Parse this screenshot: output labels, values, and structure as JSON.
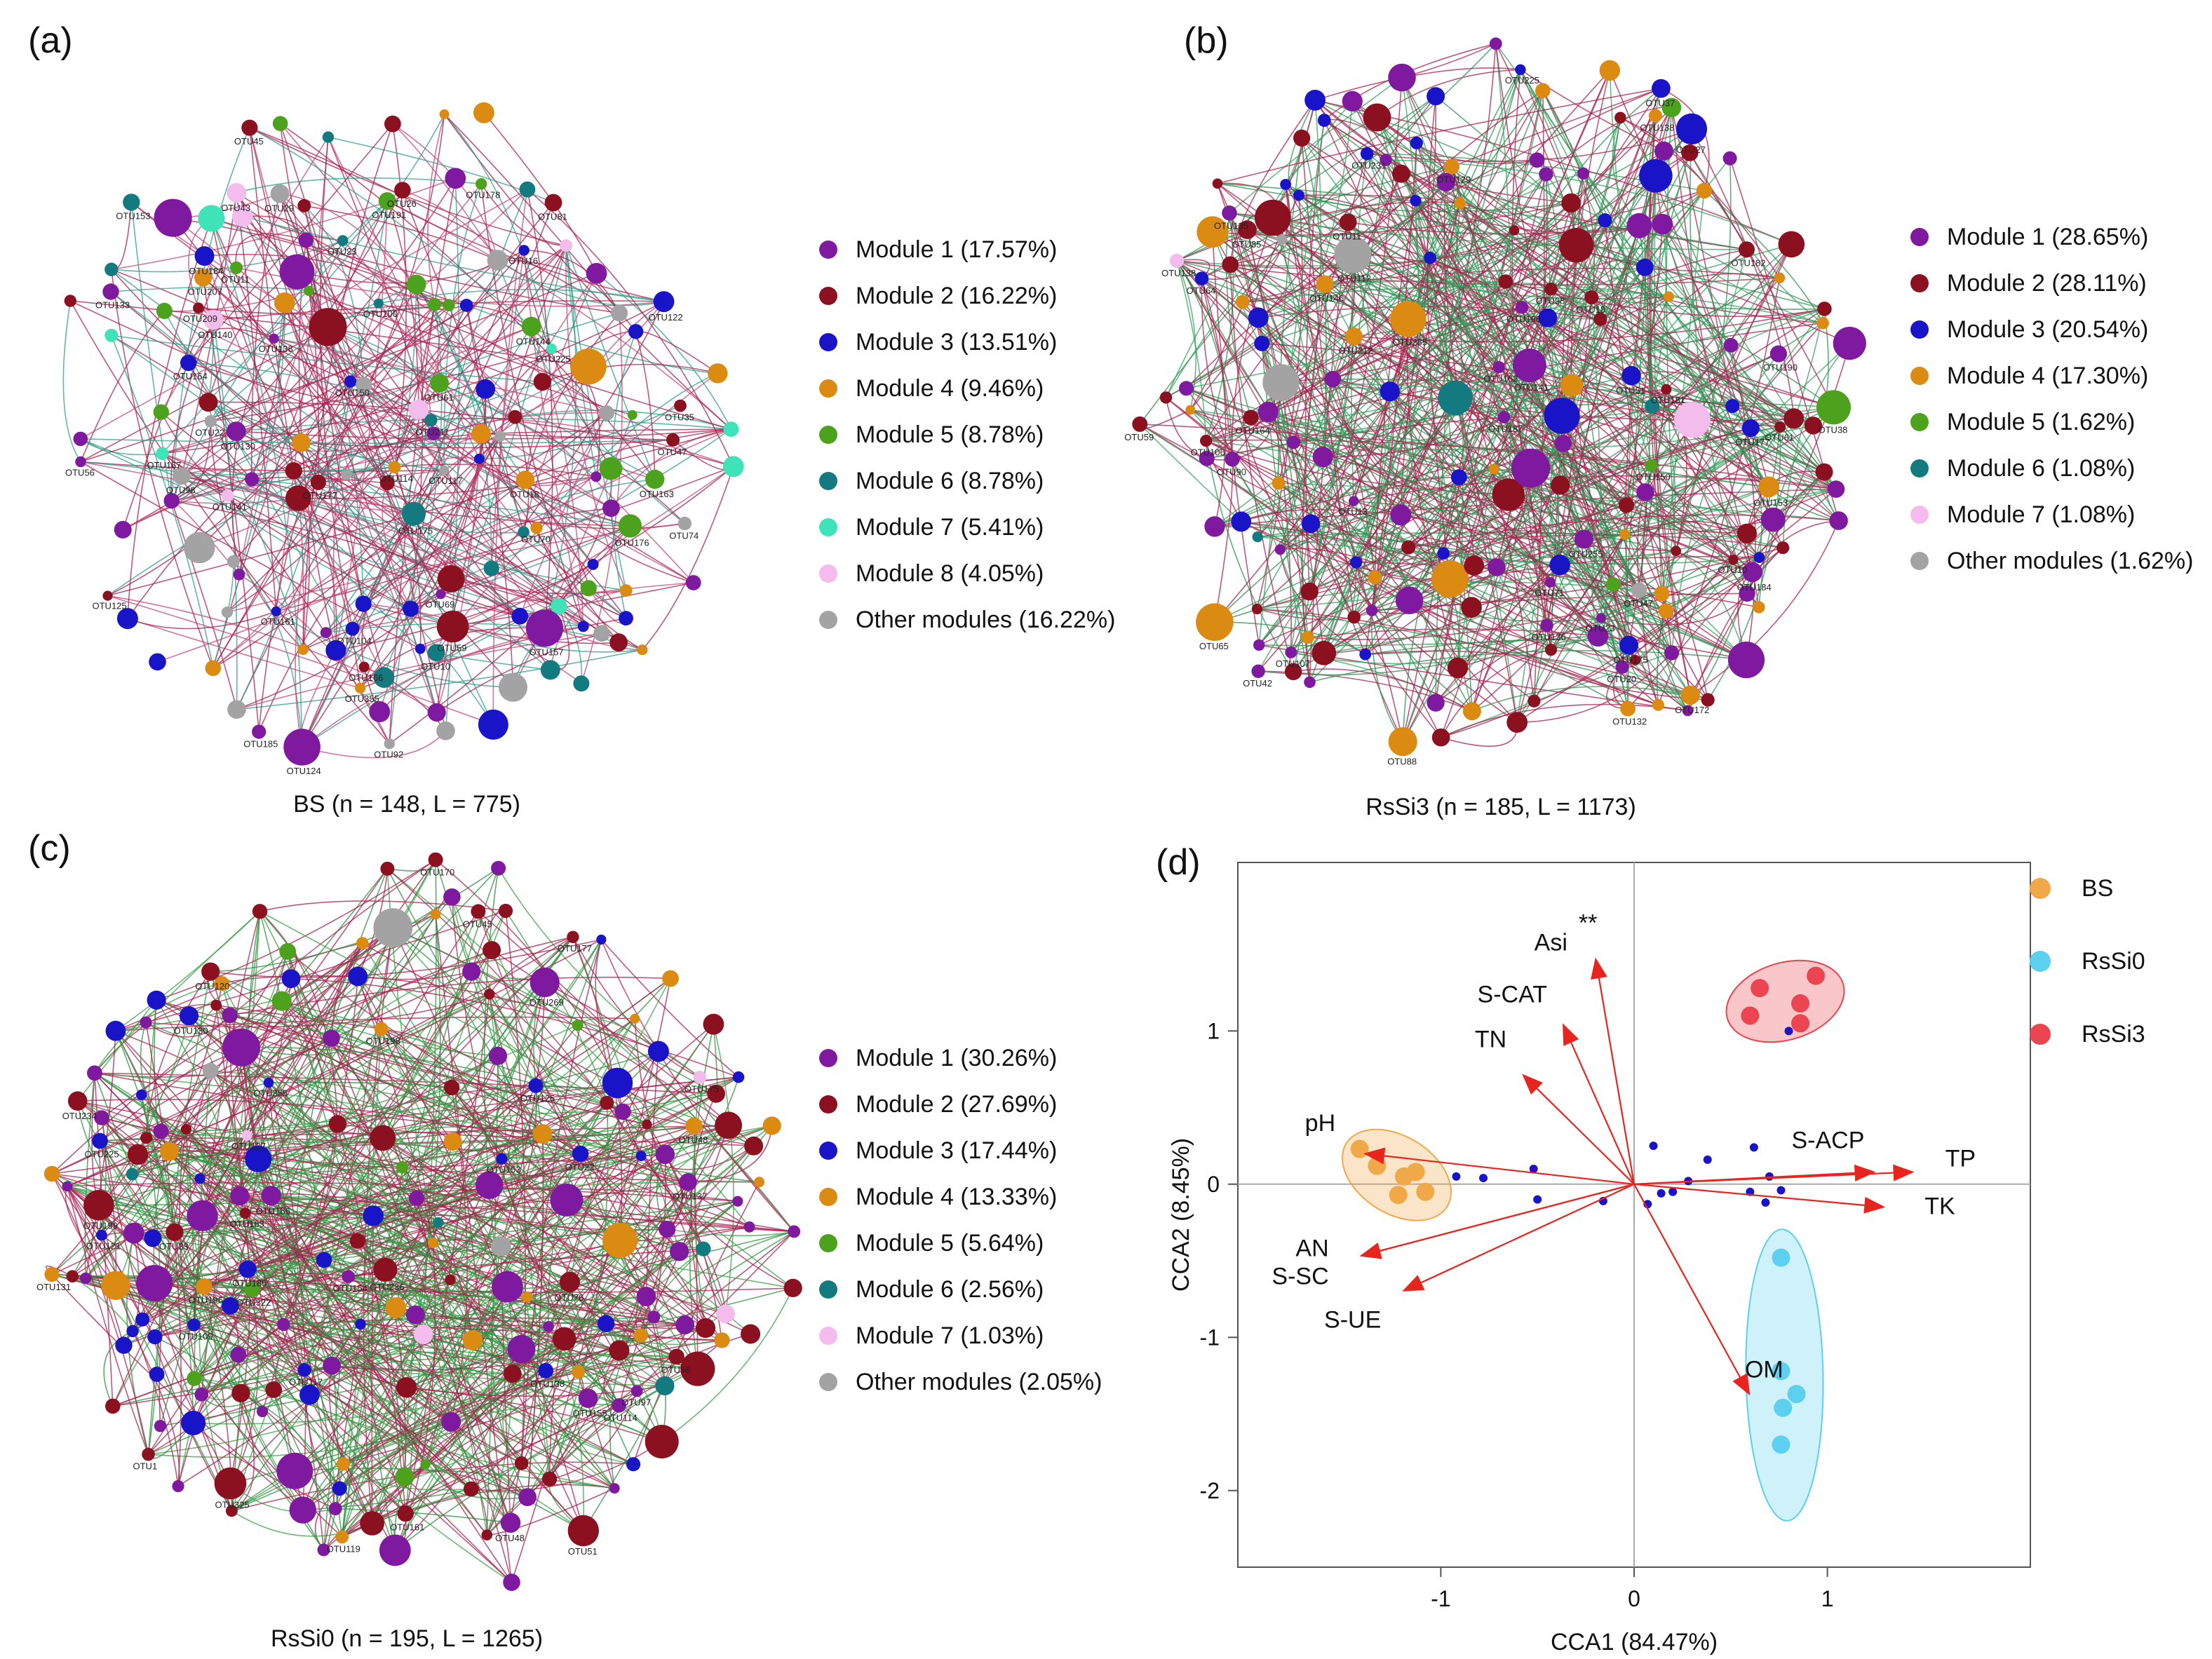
{
  "panels": {
    "a": {
      "letter": "(a)",
      "caption": "BS (n = 148, L = 775)",
      "legend": [
        {
          "label": "Module 1 (17.57%)",
          "color": "#7f1aa0"
        },
        {
          "label": "Module 2 (16.22%)",
          "color": "#8b1020"
        },
        {
          "label": "Module 3 (13.51%)",
          "color": "#1a14c8"
        },
        {
          "label": "Module 4 (9.46%)",
          "color": "#db8a12"
        },
        {
          "label": "Module 5 (8.78%)",
          "color": "#4ca21c"
        },
        {
          "label": "Module 6 (8.78%)",
          "color": "#137a80"
        },
        {
          "label": "Module 7 (5.41%)",
          "color": "#3ee3b8"
        },
        {
          "label": "Module 8 (4.05%)",
          "color": "#f4bcec"
        },
        {
          "label": "Other modules (16.22%)",
          "color": "#a3a3a3"
        }
      ]
    },
    "b": {
      "letter": "(b)",
      "caption": "RsSi3 (n = 185, L = 1173)",
      "legend": [
        {
          "label": "Module 1 (28.65%)",
          "color": "#7f1aa0"
        },
        {
          "label": "Module 2 (28.11%)",
          "color": "#8b1020"
        },
        {
          "label": "Module 3 (20.54%)",
          "color": "#1a14c8"
        },
        {
          "label": "Module 4 (17.30%)",
          "color": "#db8a12"
        },
        {
          "label": "Module 5 (1.62%)",
          "color": "#4ca21c"
        },
        {
          "label": "Module 6 (1.08%)",
          "color": "#137a80"
        },
        {
          "label": "Module 7 (1.08%)",
          "color": "#f4bcec"
        },
        {
          "label": "Other modules (1.62%)",
          "color": "#a3a3a3"
        }
      ]
    },
    "c": {
      "letter": "(c)",
      "caption": "RsSi0 (n = 195, L = 1265)",
      "legend": [
        {
          "label": "Module 1 (30.26%)",
          "color": "#7f1aa0"
        },
        {
          "label": "Module 2 (27.69%)",
          "color": "#8b1020"
        },
        {
          "label": "Module 3 (17.44%)",
          "color": "#1a14c8"
        },
        {
          "label": "Module 4 (13.33%)",
          "color": "#db8a12"
        },
        {
          "label": "Module 5 (5.64%)",
          "color": "#4ca21c"
        },
        {
          "label": "Module 6 (2.56%)",
          "color": "#137a80"
        },
        {
          "label": "Module 7 (1.03%)",
          "color": "#f4bcec"
        },
        {
          "label": "Other modules (2.05%)",
          "color": "#a3a3a3"
        }
      ]
    },
    "d": {
      "letter": "(d)",
      "legend": [
        {
          "label": "BS",
          "color": "#f0a848"
        },
        {
          "label": "RsSi0",
          "color": "#5cd0ee"
        },
        {
          "label": "RsSi3",
          "color": "#ea4550"
        }
      ]
    }
  },
  "network_labels": {
    "a": [
      "OTU175",
      "OTU191",
      "OTU124",
      "OTU23",
      "OTU74",
      "OTU56",
      "OTU92",
      "OTU209",
      "OTU70",
      "OTU98",
      "OTU16",
      "OTU35",
      "OTU185",
      "OTU59",
      "OTU178",
      "OTU100",
      "OTU133",
      "OTU104",
      "OTU11",
      "OTU122",
      "OTU177",
      "OTU144",
      "OTU207",
      "OTU161",
      "OTU140",
      "OTU164",
      "OTU176",
      "OTU114",
      "OTU150",
      "OTU47",
      "OTU45",
      "OTU22",
      "OTU157",
      "OTU130",
      "OTU29",
      "OTU10",
      "OTU69",
      "OTU43",
      "OTU138",
      "OTU26",
      "OTU153",
      "OTU125",
      "OTU225",
      "OTU167",
      "OTU355",
      "OTU184",
      "OTU166",
      "OTU61",
      "OTU163",
      "OTU81",
      "OTU211",
      "OTU18",
      "OTU117",
      "OTU141"
    ],
    "b": [
      "OTU135",
      "OTU187",
      "OTU112",
      "OTU98",
      "OTU107",
      "OTU59",
      "OTU37",
      "OTU23",
      "OTU10",
      "OTU64",
      "OTU190",
      "OTU71",
      "OTU90",
      "OTU146",
      "OTU61",
      "OTU18",
      "OTU212",
      "OTU85",
      "OTU20",
      "OTU13",
      "OTU164",
      "OTU138",
      "OTU11",
      "OTU42",
      "OTU181",
      "OTU138",
      "OTU38",
      "OTU47",
      "OTU132",
      "OTU172",
      "OTU175",
      "OTU51",
      "OTU184",
      "OTU88",
      "OTU225",
      "OTU141",
      "OTU255",
      "OTU153",
      "OTU106",
      "OTU285",
      "OTU65",
      "OTU136",
      "OTU182",
      "OTU162",
      "OTU196",
      "OTU150",
      "OTU177",
      "OTU129",
      "OTU231",
      "OTU27"
    ],
    "c": [
      "OTU58",
      "OTU355",
      "OTU236",
      "OTU269",
      "OTU325",
      "OTU33",
      "OTU109",
      "OTU185",
      "OTU161",
      "OTU154",
      "OTU322",
      "OTU186",
      "OTU121",
      "OTU153",
      "OTU175",
      "OTU120",
      "OTU114",
      "OTU48",
      "OTU51",
      "OTU225",
      "OTU170",
      "OTU127",
      "OTU119",
      "OTU196",
      "OTU131",
      "OTU234",
      "OTU45",
      "OTU1",
      "OTU155",
      "OTU177",
      "OTU117",
      "OTU130",
      "OTU138",
      "OTU163",
      "OTU198",
      "OTU76",
      "OTU97",
      "OTU137",
      "OTU125",
      "OTU48",
      "OTU22",
      "OTU199"
    ]
  },
  "chart_data": {
    "type": "scatter",
    "title": "",
    "xlabel": "CCA1  (84.47%)",
    "ylabel": "CCA2  (8.45%)",
    "xlim": [
      -2.05,
      2.05
    ],
    "ylim": [
      -2.5,
      2.1
    ],
    "x_ticks": [
      "-1",
      "0",
      "1"
    ],
    "y_ticks": [
      "1",
      "0",
      "-1",
      "-2"
    ],
    "series": [
      {
        "name": "BS",
        "color": "#f0a848",
        "points": [
          [
            -1.42,
            0.23
          ],
          [
            -1.33,
            0.12
          ],
          [
            -1.19,
            0.05
          ],
          [
            -1.13,
            0.08
          ],
          [
            -1.22,
            -0.07
          ],
          [
            -1.08,
            -0.05
          ]
        ]
      },
      {
        "name": "RsSi0",
        "color": "#5cd0ee",
        "points": [
          [
            0.76,
            -0.48
          ],
          [
            0.76,
            -1.22
          ],
          [
            0.84,
            -1.37
          ],
          [
            0.77,
            -1.46
          ],
          [
            0.76,
            -1.7
          ]
        ]
      },
      {
        "name": "RsSi3",
        "color": "#ea4550",
        "points": [
          [
            0.65,
            1.28
          ],
          [
            0.94,
            1.36
          ],
          [
            0.86,
            1.18
          ],
          [
            0.6,
            1.1
          ],
          [
            0.86,
            1.05
          ]
        ]
      }
    ],
    "species_points": [
      [
        0.8,
        1.0
      ],
      [
        -0.92,
        0.05
      ],
      [
        -0.78,
        0.04
      ],
      [
        -0.52,
        0.1
      ],
      [
        -0.5,
        -0.1
      ],
      [
        -0.16,
        -0.11
      ],
      [
        0.1,
        0.25
      ],
      [
        0.07,
        -0.13
      ],
      [
        0.14,
        -0.06
      ],
      [
        0.2,
        -0.05
      ],
      [
        0.28,
        0.02
      ],
      [
        0.38,
        0.16
      ],
      [
        0.62,
        0.24
      ],
      [
        0.7,
        0.05
      ],
      [
        0.6,
        -0.05
      ],
      [
        0.68,
        -0.12
      ],
      [
        0.76,
        -0.04
      ]
    ],
    "species_color": "#1a14c8",
    "vectors": [
      {
        "name": "Asi",
        "x": -0.2,
        "y": 1.48
      },
      {
        "name": "S-CAT",
        "x": -0.37,
        "y": 1.05
      },
      {
        "name": "TN",
        "x": -0.58,
        "y": 0.72
      },
      {
        "name": "pH",
        "x": -1.4,
        "y": 0.2
      },
      {
        "name": "AN",
        "x": -1.42,
        "y": -0.47
      },
      {
        "name": "S-SC",
        "x": -1.42,
        "y": -0.47
      },
      {
        "name": "S-UE",
        "x": -1.2,
        "y": -0.7
      },
      {
        "name": "OM",
        "x": 0.6,
        "y": -1.38
      },
      {
        "name": "S-ACP",
        "x": 1.25,
        "y": 0.08
      },
      {
        "name": "TP",
        "x": 1.45,
        "y": 0.08
      },
      {
        "name": "TK",
        "x": 1.3,
        "y": -0.15
      }
    ],
    "vector_color": "#e8241e",
    "annotation": "**",
    "grid": false,
    "legend_position": "right"
  }
}
